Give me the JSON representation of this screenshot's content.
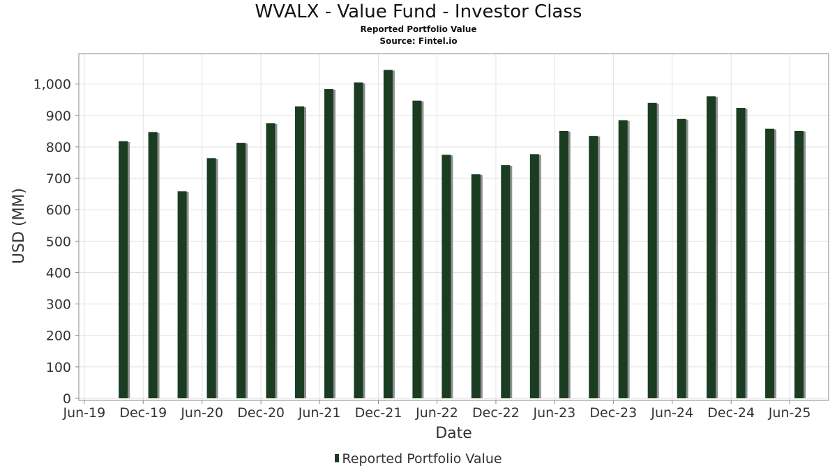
{
  "chart_data": {
    "type": "bar",
    "title": "WVALX - Value Fund - Investor Class",
    "subtitle": "Reported Portfolio Value",
    "source": "Source: Fintel.io",
    "xlabel": "Date",
    "ylabel": "USD (MM)",
    "ylim": [
      0,
      1100
    ],
    "yticks": [
      0,
      100,
      200,
      300,
      400,
      500,
      600,
      700,
      800,
      900,
      1000
    ],
    "ytick_labels": [
      "0",
      "100",
      "200",
      "300",
      "400",
      "500",
      "600",
      "700",
      "800",
      "900",
      "1,000"
    ],
    "xlim": [
      "2019-05-15",
      "2025-09-30"
    ],
    "xticks": [
      "2019-06-01",
      "2019-12-01",
      "2020-06-01",
      "2020-12-01",
      "2021-06-01",
      "2021-12-01",
      "2022-06-01",
      "2022-12-01",
      "2023-06-01",
      "2023-12-01",
      "2024-06-01",
      "2024-12-01",
      "2025-06-01"
    ],
    "xtick_labels": [
      "Jun-19",
      "Dec-19",
      "Jun-20",
      "Dec-20",
      "Jun-21",
      "Dec-21",
      "Jun-22",
      "Dec-22",
      "Jun-23",
      "Dec-23",
      "Jun-24",
      "Dec-24",
      "Jun-25"
    ],
    "grid": true,
    "legend_position": "bottom",
    "series": [
      {
        "name": "Reported Portfolio Value",
        "color": "#1a3d22",
        "x": [
          "2019-09-30",
          "2019-12-31",
          "2020-03-31",
          "2020-06-30",
          "2020-09-30",
          "2020-12-31",
          "2021-03-31",
          "2021-06-30",
          "2021-09-30",
          "2021-12-31",
          "2022-03-31",
          "2022-06-30",
          "2022-09-30",
          "2022-12-31",
          "2023-03-31",
          "2023-06-30",
          "2023-09-30",
          "2023-12-31",
          "2024-03-31",
          "2024-06-30",
          "2024-09-30",
          "2024-12-31",
          "2025-03-31",
          "2025-06-30"
        ],
        "values": [
          818,
          847,
          659,
          764,
          813,
          875,
          929,
          984,
          1005,
          1045,
          947,
          775,
          713,
          742,
          777,
          851,
          835,
          885,
          940,
          889,
          961,
          924,
          858,
          851
        ]
      }
    ]
  }
}
